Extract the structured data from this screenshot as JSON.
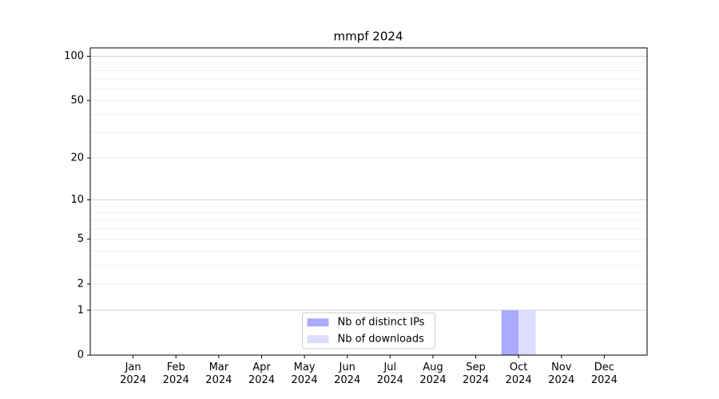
{
  "chart_data": {
    "type": "bar",
    "title": "mmpf 2024",
    "categories": [
      "Jan\n2024",
      "Feb\n2024",
      "Mar\n2024",
      "Apr\n2024",
      "May\n2024",
      "Jun\n2024",
      "Jul\n2024",
      "Aug\n2024",
      "Sep\n2024",
      "Oct\n2024",
      "Nov\n2024",
      "Dec\n2024"
    ],
    "series": [
      {
        "name": "Nb of distinct IPs",
        "color": "#aaaaff",
        "values": [
          0,
          0,
          0,
          0,
          0,
          0,
          0,
          0,
          0,
          1,
          0,
          0
        ]
      },
      {
        "name": "Nb of downloads",
        "color": "#ddddff",
        "values": [
          0,
          0,
          0,
          0,
          0,
          0,
          0,
          0,
          0,
          1,
          0,
          0
        ]
      }
    ],
    "yscale": "log1p",
    "ylim": [
      0,
      114
    ],
    "yticks": [
      0,
      1,
      2,
      5,
      10,
      20,
      50,
      100
    ],
    "minor_yticks": [
      3,
      4,
      6,
      7,
      8,
      9,
      30,
      40,
      60,
      70,
      80,
      90
    ],
    "grid": true,
    "legend": "lower center"
  }
}
